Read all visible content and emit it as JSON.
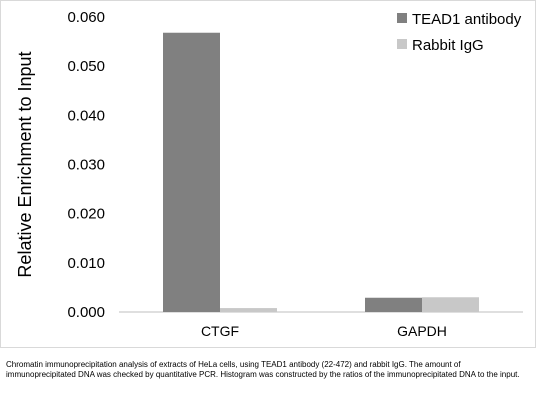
{
  "chart_data": {
    "type": "bar",
    "categories": [
      "CTGF",
      "GAPDH"
    ],
    "series": [
      {
        "name": "TEAD1 antibody",
        "values": [
          0.0568,
          0.0029
        ],
        "color": "#808080"
      },
      {
        "name": "Rabbit IgG",
        "values": [
          0.0008,
          0.003
        ],
        "color": "#c8c8c8"
      }
    ],
    "ylabel": "Relative Enrichment to Input",
    "ylim": [
      0,
      0.06
    ],
    "yticks": [
      "0.000",
      "0.010",
      "0.020",
      "0.030",
      "0.040",
      "0.050",
      "0.060"
    ],
    "legend_position": "top-right",
    "grid": false
  },
  "caption": "Chromatin immunoprecipitation analysis of extracts of HeLa cells, using TEAD1 antibody (22-472) and rabbit IgG. The amount of immunoprecipitated DNA was checked by quantitative PCR. Histogram was constructed by the ratios of the immunoprecipitated DNA to the input."
}
